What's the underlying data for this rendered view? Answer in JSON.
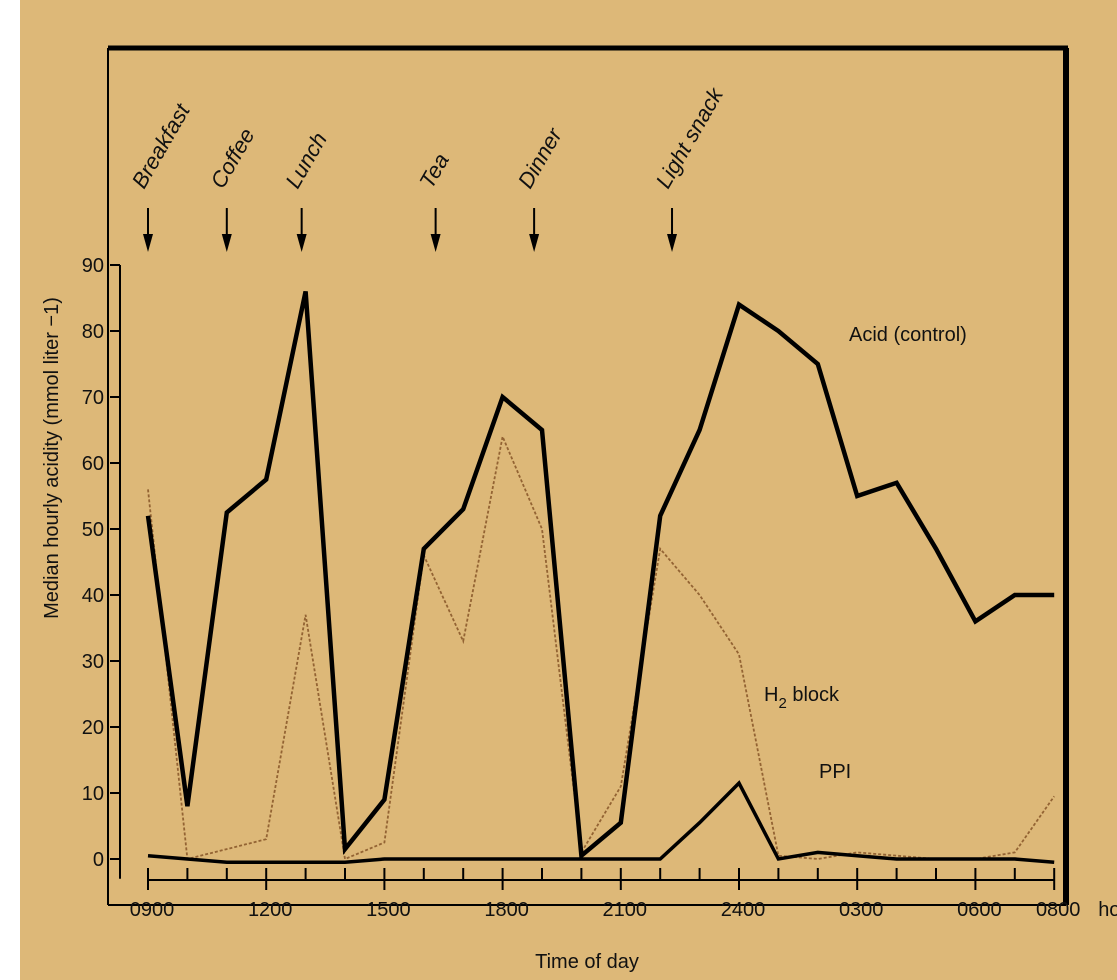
{
  "chart_data": {
    "type": "line",
    "title": "",
    "xlabel": "Time of day",
    "ylabel": "Median hourly acidity (mmol liter −1)",
    "x_unit_label": "hours",
    "xlim": [
      0,
      24.8
    ],
    "ylim": [
      -3,
      90
    ],
    "yticks": [
      0,
      10,
      20,
      30,
      40,
      50,
      60,
      70,
      80,
      90
    ],
    "xticks": [
      {
        "x": 0,
        "label": "0900"
      },
      {
        "x": 3,
        "label": "1200"
      },
      {
        "x": 6,
        "label": "1500"
      },
      {
        "x": 9,
        "label": "1800"
      },
      {
        "x": 12,
        "label": "2100"
      },
      {
        "x": 15,
        "label": "2400"
      },
      {
        "x": 18,
        "label": "0300"
      },
      {
        "x": 21,
        "label": "0600"
      },
      {
        "x": 23,
        "label": "0800"
      }
    ],
    "minor_ticks": [
      1,
      2,
      4,
      5,
      7,
      8,
      10,
      11,
      13,
      14,
      16,
      17,
      19,
      20,
      22
    ],
    "events": [
      {
        "x": 0,
        "label": "Breakfast"
      },
      {
        "x": 2,
        "label": "Coffee"
      },
      {
        "x": 3.9,
        "label": "Lunch"
      },
      {
        "x": 7.3,
        "label": "Tea"
      },
      {
        "x": 9.8,
        "label": "Dinner"
      },
      {
        "x": 13.3,
        "label": "Light snack"
      }
    ],
    "series": [
      {
        "name": "Acid (control)",
        "color": "#000000",
        "x": [
          0,
          1,
          2,
          3,
          4,
          5,
          6,
          7,
          8,
          9,
          10,
          11,
          12,
          13,
          14,
          15,
          16,
          17,
          18,
          19,
          20,
          21,
          22,
          23
        ],
        "y": [
          52,
          8,
          52.5,
          57.5,
          86,
          1.5,
          9,
          47,
          53,
          70,
          65,
          0.5,
          5.5,
          52,
          65,
          84,
          80,
          75,
          55,
          57,
          47,
          36,
          40,
          40
        ]
      },
      {
        "name": "H₂ block",
        "color": "#8b5a2b",
        "x": [
          0,
          1,
          2,
          3,
          4,
          5,
          6,
          7,
          8,
          9,
          10,
          11,
          12,
          13,
          14,
          15,
          16,
          17,
          18,
          19,
          20,
          21,
          22,
          23
        ],
        "y": [
          56,
          0,
          1.5,
          3,
          37,
          0,
          2.5,
          46,
          33,
          64,
          50,
          1,
          11,
          47,
          40,
          31,
          0.5,
          0,
          1,
          0.5,
          0,
          0,
          1,
          9.5
        ]
      },
      {
        "name": "PPI",
        "color": "#000000",
        "x": [
          0,
          1,
          2,
          3,
          4,
          5,
          6,
          7,
          8,
          9,
          10,
          11,
          12,
          13,
          14,
          15,
          16,
          17,
          18,
          19,
          20,
          21,
          22,
          23
        ],
        "y": [
          0.5,
          0,
          -0.5,
          -0.5,
          -0.5,
          -0.5,
          0,
          0,
          0,
          0,
          0,
          0,
          0,
          0,
          5.5,
          11.5,
          0,
          1,
          0.5,
          0,
          0,
          0,
          0,
          -0.5
        ]
      }
    ],
    "series_labels": [
      {
        "series": 0,
        "text": "Acid (control)"
      },
      {
        "series": 1,
        "text": "H",
        "subscript": "2",
        "suffix": " block"
      },
      {
        "series": 2,
        "text": "PPI"
      }
    ],
    "background_color": "#ddb878",
    "grid": false,
    "legend": "inline labels"
  }
}
